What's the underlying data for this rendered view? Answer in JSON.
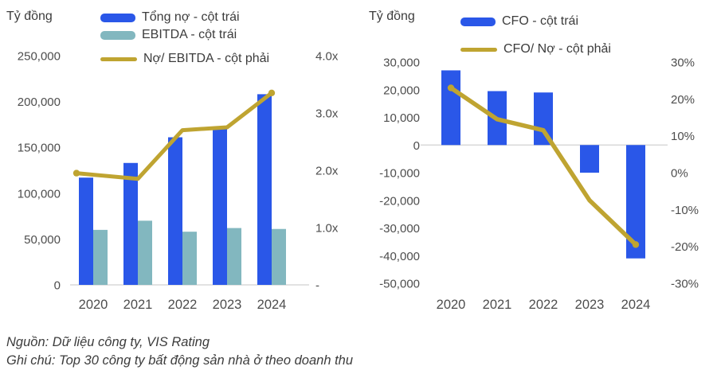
{
  "colors": {
    "bar_blue": "#2a57e8",
    "bar_teal": "#82b7bf",
    "line_gold": "#bfa431",
    "baseline_gray": "#d8d8d8",
    "tick_text": "#4d4d4d",
    "label_text": "#3c3c3c"
  },
  "footer": {
    "line1": "Nguồn: Dữ liệu công ty, VIS Rating",
    "line2": "Ghi chú: Top 30 công ty bất động sản nhà ở theo doanh thu"
  },
  "chart_data": [
    {
      "type": "bar",
      "title": "",
      "axis_label": "Tỷ đồng",
      "unit": "tỷ đồng",
      "categories": [
        "2020",
        "2021",
        "2022",
        "2023",
        "2024"
      ],
      "series": [
        {
          "name": "Tổng nợ - cột trái",
          "kind": "bar",
          "axis": "left",
          "color": "bar_blue",
          "values": [
            117000,
            133000,
            161000,
            170000,
            208000
          ]
        },
        {
          "name": "EBITDA - cột trái",
          "kind": "bar",
          "axis": "left",
          "color": "bar_teal",
          "values": [
            60000,
            70000,
            58000,
            62000,
            61000
          ]
        },
        {
          "name": "Nợ/ EBITDA - cột phải",
          "kind": "line",
          "axis": "right",
          "color": "line_gold",
          "values": [
            1.95,
            1.85,
            2.7,
            2.75,
            3.35
          ]
        }
      ],
      "left_axis": {
        "min": 0,
        "max": 250000,
        "tick_values": [
          250000,
          200000,
          150000,
          100000,
          50000,
          0
        ],
        "tick_labels": [
          "250,000",
          "200,000",
          "150,000",
          "100,000",
          "50,000",
          "0"
        ]
      },
      "right_axis": {
        "min": 0,
        "max": 4,
        "tick_values": [
          4,
          3,
          2,
          1,
          0
        ],
        "tick_labels": [
          "4.0x",
          "3.0x",
          "2.0x",
          "1.0x",
          "-"
        ]
      },
      "legend_position": "top",
      "grid": false
    },
    {
      "type": "bar",
      "title": "",
      "axis_label": "Tỷ đồng",
      "unit": "tỷ đồng",
      "categories": [
        "2020",
        "2021",
        "2022",
        "2023",
        "2024"
      ],
      "series": [
        {
          "name": "CFO - cột trái",
          "kind": "bar",
          "axis": "left",
          "color": "bar_blue",
          "values": [
            27000,
            19500,
            19000,
            -10000,
            -41000
          ]
        },
        {
          "name": "CFO/ Nợ - cột phải",
          "kind": "line",
          "axis": "right",
          "color": "line_gold",
          "values": [
            23,
            14.5,
            11.5,
            -7.5,
            -19.5
          ]
        }
      ],
      "left_axis": {
        "min": -50000,
        "max": 30000,
        "tick_values": [
          30000,
          20000,
          10000,
          0,
          -10000,
          -20000,
          -30000,
          -40000,
          -50000
        ],
        "tick_labels": [
          "30,000",
          "20,000",
          "10,000",
          "0",
          "-10,000",
          "-20,000",
          "-30,000",
          "-40,000",
          "-50,000"
        ]
      },
      "right_axis": {
        "min": -30,
        "max": 30,
        "tick_values": [
          30,
          20,
          10,
          0,
          -10,
          -20,
          -30
        ],
        "tick_labels": [
          "30%",
          "20%",
          "10%",
          "0%",
          "-10%",
          "-20%",
          "-30%"
        ]
      },
      "legend_position": "top",
      "grid": false
    }
  ]
}
